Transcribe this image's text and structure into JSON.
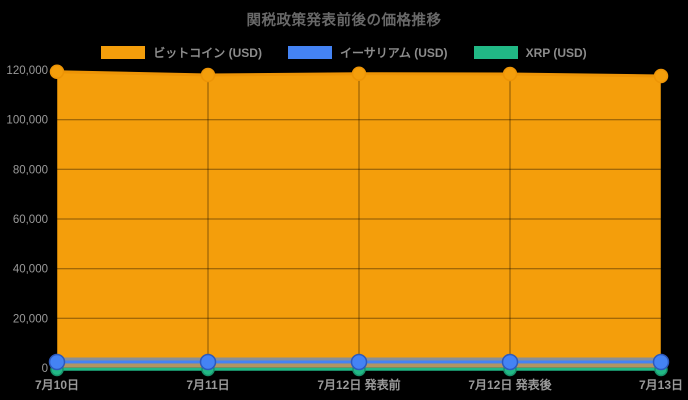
{
  "title": "関税政策発表前後の価格推移",
  "legend": [
    {
      "label": "ビットコイン (USD)",
      "color": "#F49E0B"
    },
    {
      "label": "イーサリアム (USD)",
      "color": "#4483F4"
    },
    {
      "label": "XRP (USD)",
      "color": "#21B885"
    }
  ],
  "chart_data": {
    "type": "area",
    "title": "関税政策発表前後の価格推移",
    "categories": [
      "7月10日",
      "7月11日",
      "7月12日 発表前",
      "7月12日 発表後",
      "7月13日"
    ],
    "series": [
      {
        "name": "ビットコイン (USD)",
        "color": "#F49E0B",
        "border_color": "#ED9406",
        "values": [
          119300,
          118000,
          118500,
          118400,
          117600
        ]
      },
      {
        "name": "イーサリアム (USD)",
        "color": "#4483F4",
        "border_color": "#2C59BC",
        "values": [
          2400,
          2400,
          2400,
          2400,
          2400
        ]
      },
      {
        "name": "XRP (USD)",
        "color": "#21B885",
        "border_color": "#17926B",
        "values": [
          3,
          3,
          3,
          3,
          3
        ]
      }
    ],
    "ylim": [
      0,
      120000
    ],
    "ytick_step": 20000,
    "ytick_labels": [
      "0",
      "20,000",
      "40,000",
      "60,000",
      "80,000",
      "100,000",
      "120,000"
    ],
    "grid": true,
    "legend_position": "top",
    "background": "#000000",
    "text_color": "#9a9a9a",
    "grid_color": "rgba(0,0,0,0.45)"
  }
}
